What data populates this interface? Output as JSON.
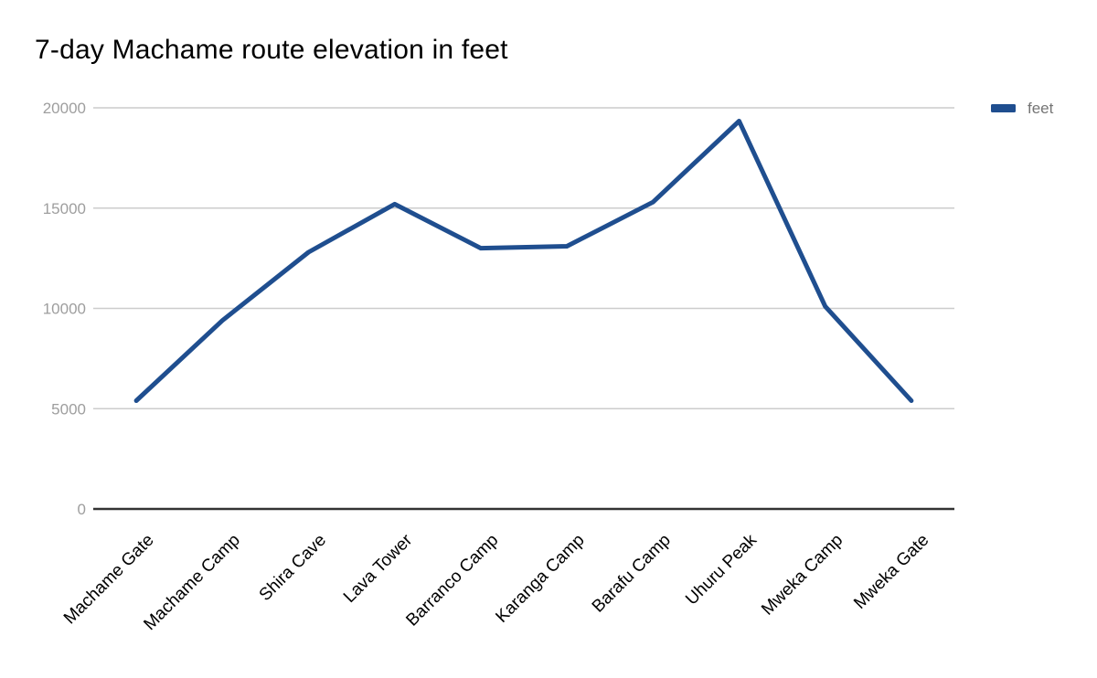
{
  "page": {
    "background": "#ffffff"
  },
  "chart_data": {
    "type": "line",
    "title": "7-day Machame route elevation in feet",
    "categories": [
      "Machame Gate",
      "Machame Camp",
      "Shira Cave",
      "Lava Tower",
      "Barranco Camp",
      "Karanga Camp",
      "Barafu Camp",
      "Uhuru Peak",
      "Mweka Camp",
      "Mweka Gate"
    ],
    "series": [
      {
        "name": "feet",
        "color": "#1f4e8f",
        "values": [
          5400,
          9400,
          12800,
          15200,
          13000,
          13100,
          15300,
          19341,
          10100,
          5400
        ]
      }
    ],
    "xlabel": "",
    "ylabel": "",
    "ylim": [
      0,
      20000
    ],
    "yticks": [
      0,
      5000,
      10000,
      15000,
      20000
    ],
    "grid": true,
    "legend_position": "top-right",
    "x_label_rotation": -45,
    "styles": {
      "gridline_color": "#cccccc",
      "axis_line_color": "#333333",
      "y_tick_label_color": "#9e9e9e",
      "x_tick_label_color": "#000000",
      "title_color": "#000000",
      "legend_text_color": "#757575",
      "background": "#ffffff",
      "line_width": 5
    }
  }
}
